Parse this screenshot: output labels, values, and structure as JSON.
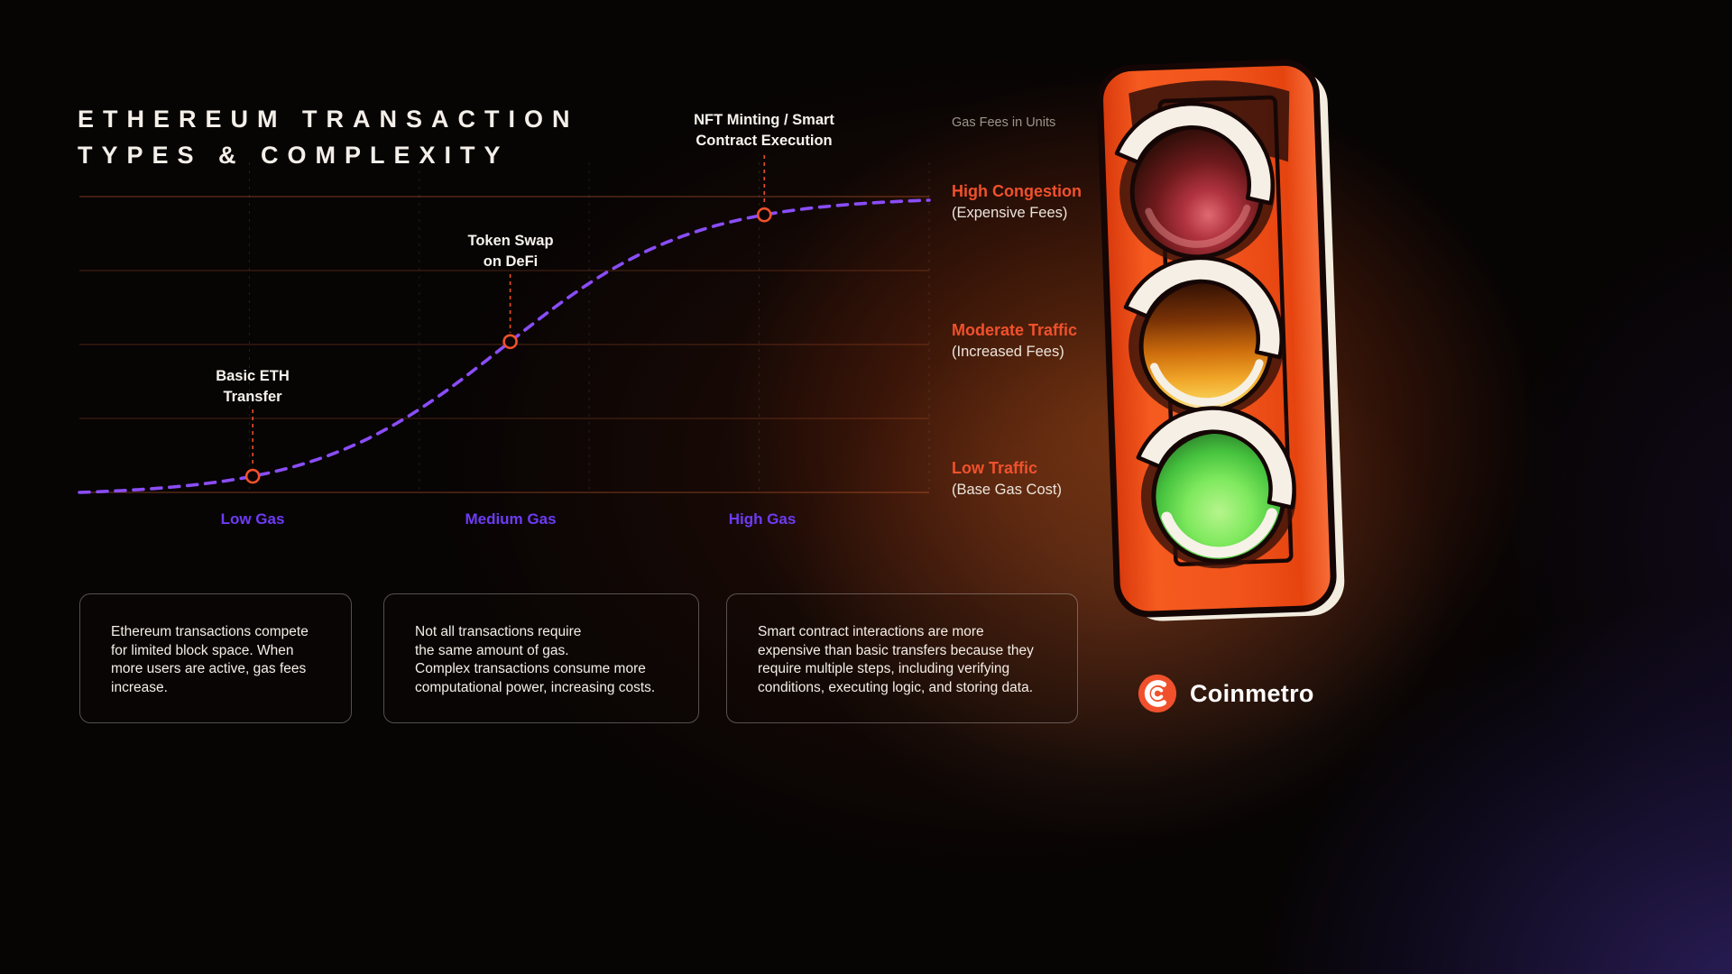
{
  "page": {
    "title": "ETHEREUM TRANSACTION\nTYPES & COMPLEXITY"
  },
  "colors": {
    "accent_orange": "#f0512c",
    "label_purple": "#6e3bf5",
    "curve_purple": "#8a4df8"
  },
  "chart_data": {
    "type": "line",
    "curve": "sigmoid",
    "title": "Ethereum Transaction Types & Complexity",
    "x_tick_labels": [
      "Low Gas",
      "Medium Gas",
      "High Gas"
    ],
    "y_axis_label": "Gas Fees in Units",
    "ylim": [
      0,
      100
    ],
    "grid": true,
    "marker_color": "#f0512c",
    "y_level_labels": [
      {
        "label": "High Congestion",
        "sublabel": "(Expensive Fees)"
      },
      {
        "label": "Moderate Traffic",
        "sublabel": "(Increased Fees)"
      },
      {
        "label": "Low Traffic",
        "sublabel": "(Base Gas Cost)"
      }
    ],
    "series": [
      {
        "name": "Gas fee curve",
        "style": "dashed",
        "color": "#8a4df8",
        "points": [
          {
            "label": "Basic ETH\nTransfer",
            "x": "Low Gas",
            "x_frac": 0.204,
            "value": 7
          },
          {
            "label": "Token Swap\non DeFi",
            "x": "Medium Gas",
            "x_frac": 0.507,
            "value": 51
          },
          {
            "label": "NFT Minting / Smart\nContract Execution",
            "x": "High Gas",
            "x_frac": 0.806,
            "value": 95
          }
        ]
      }
    ]
  },
  "cards": [
    {
      "text": "Ethereum transactions compete\nfor limited block space. When\nmore users are active, gas fees\nincrease."
    },
    {
      "text": "Not all transactions require\nthe same amount of gas.\nComplex transactions consume more\ncomputational power, increasing costs."
    },
    {
      "text": "Smart contract interactions are more\nexpensive than basic transfers because they\nrequire multiple steps, including verifying\nconditions, executing logic, and storing data."
    }
  ],
  "illustration": {
    "name": "traffic-light",
    "lights": [
      "red",
      "amber",
      "green"
    ]
  },
  "brand": {
    "name": "Coinmetro"
  }
}
